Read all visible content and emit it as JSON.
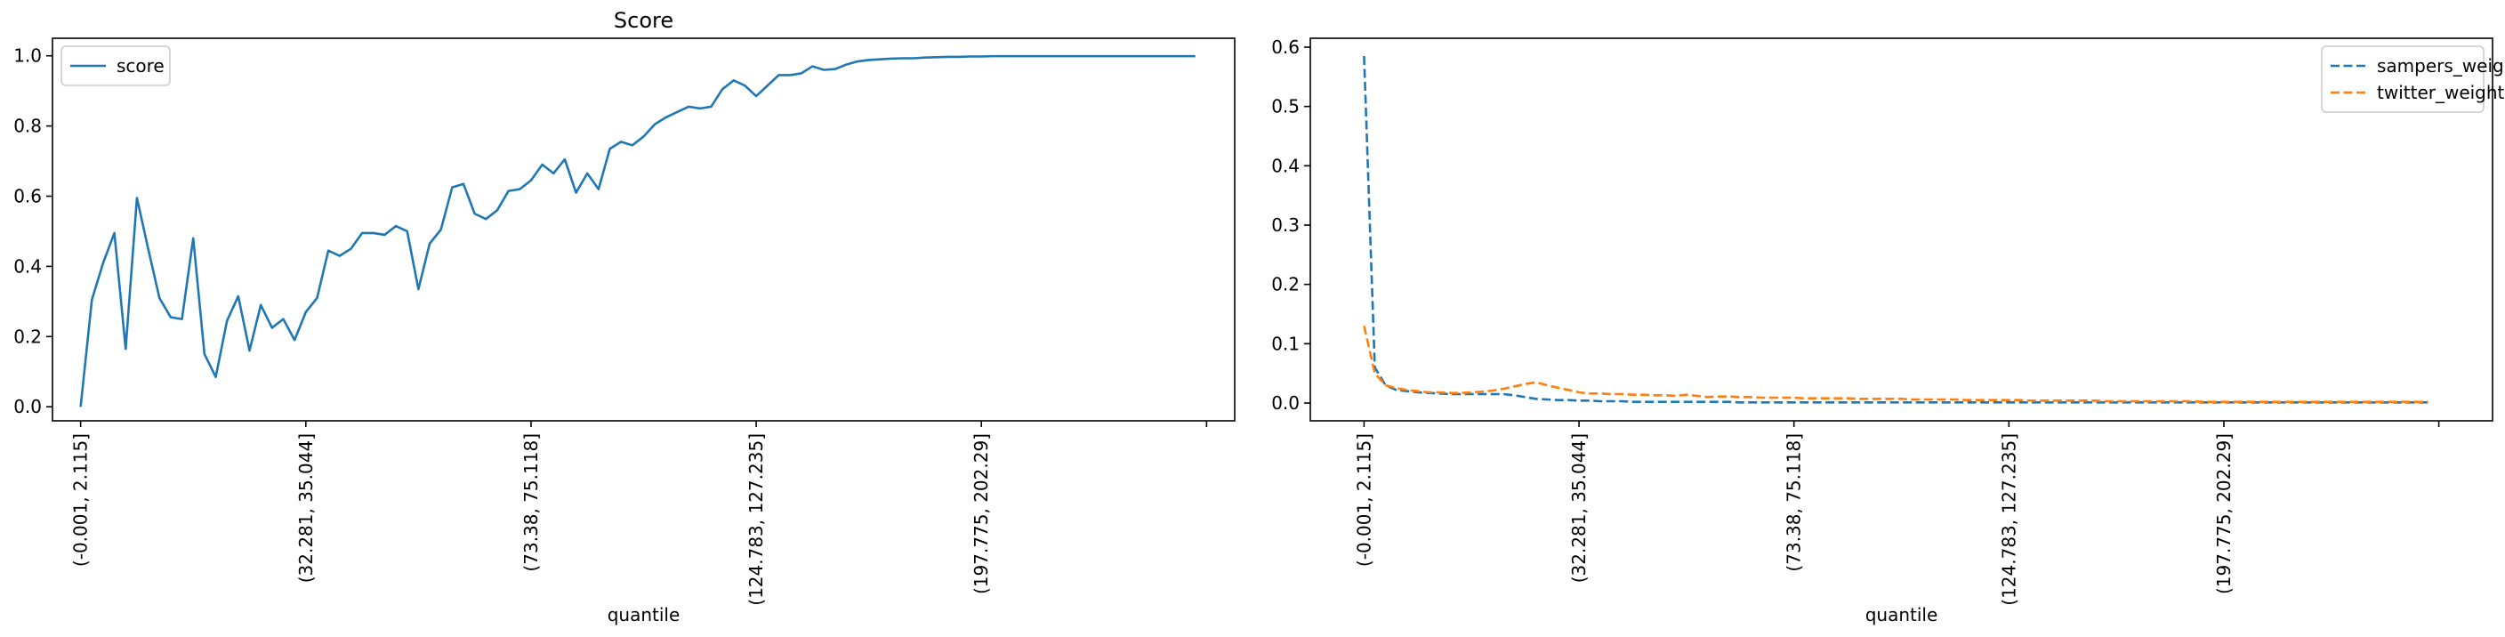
{
  "chart_data": [
    {
      "type": "line",
      "title": "Score",
      "xlabel": "quantile",
      "ylabel": "",
      "ylim": [
        -0.04,
        1.05
      ],
      "xlim": [
        -2.5,
        102.5
      ],
      "yticks": [
        0.0,
        0.2,
        0.4,
        0.6,
        0.8,
        1.0
      ],
      "ytick_labels": [
        "0.0",
        "0.2",
        "0.4",
        "0.6",
        "0.8",
        "1.0"
      ],
      "xticks": [
        0,
        20,
        40,
        60,
        80,
        100
      ],
      "xtick_labels": [
        "(-0.001, 2.115]",
        "(32.281, 35.044]",
        "(73.38, 75.118]",
        "(124.783, 127.235]",
        "(197.775, 202.29]",
        ""
      ],
      "legend_position": "upper left",
      "grid": false,
      "series": [
        {
          "name": "score",
          "color": "#1f77b4",
          "linestyle": "solid",
          "values": [
            0.0,
            0.305,
            0.41,
            0.495,
            0.165,
            0.595,
            0.45,
            0.31,
            0.255,
            0.25,
            0.48,
            0.15,
            0.085,
            0.245,
            0.315,
            0.16,
            0.29,
            0.225,
            0.25,
            0.19,
            0.27,
            0.31,
            0.445,
            0.43,
            0.45,
            0.495,
            0.495,
            0.49,
            0.515,
            0.5,
            0.335,
            0.465,
            0.505,
            0.625,
            0.635,
            0.55,
            0.535,
            0.56,
            0.615,
            0.62,
            0.645,
            0.69,
            0.665,
            0.705,
            0.61,
            0.665,
            0.62,
            0.735,
            0.755,
            0.745,
            0.77,
            0.805,
            0.825,
            0.84,
            0.855,
            0.85,
            0.855,
            0.905,
            0.93,
            0.915,
            0.885,
            0.915,
            0.945,
            0.945,
            0.95,
            0.97,
            0.96,
            0.962,
            0.975,
            0.984,
            0.988,
            0.99,
            0.992,
            0.993,
            0.993,
            0.995,
            0.996,
            0.997,
            0.997,
            0.998,
            0.998,
            0.999,
            0.999,
            0.999,
            0.999,
            0.999,
            0.999,
            0.999,
            0.999,
            0.999,
            0.999,
            0.999,
            0.999,
            0.999,
            0.999,
            0.999,
            0.999,
            0.999,
            0.999,
            0.999
          ]
        }
      ]
    },
    {
      "type": "line",
      "title": "",
      "xlabel": "quantile",
      "ylabel": "",
      "ylim": [
        -0.03,
        0.615
      ],
      "xlim": [
        -5.0,
        105.0
      ],
      "yticks": [
        0.0,
        0.1,
        0.2,
        0.3,
        0.4,
        0.5,
        0.6
      ],
      "ytick_labels": [
        "0.0",
        "0.1",
        "0.2",
        "0.3",
        "0.4",
        "0.5",
        "0.6"
      ],
      "xticks": [
        0,
        20,
        40,
        60,
        80,
        100
      ],
      "xtick_labels": [
        "(-0.001, 2.115]",
        "(32.281, 35.044]",
        "(73.38, 75.118]",
        "(124.783, 127.235]",
        "(197.775, 202.29]",
        ""
      ],
      "legend_position": "upper right",
      "grid": false,
      "series": [
        {
          "name": "sampers_weight",
          "color": "#1f77b4",
          "linestyle": "dashed",
          "values": [
            0.585,
            0.06,
            0.03,
            0.022,
            0.02,
            0.018,
            0.017,
            0.016,
            0.015,
            0.015,
            0.015,
            0.015,
            0.015,
            0.015,
            0.013,
            0.01,
            0.007,
            0.006,
            0.005,
            0.005,
            0.004,
            0.004,
            0.003,
            0.003,
            0.003,
            0.002,
            0.002,
            0.002,
            0.002,
            0.002,
            0.002,
            0.002,
            0.002,
            0.002,
            0.002,
            0.001,
            0.001,
            0.001,
            0.001,
            0.001,
            0.001,
            0.001,
            0.001,
            0.001,
            0.001,
            0.001,
            0.001,
            0.001,
            0.001,
            0.001,
            0.001,
            0.001,
            0.001,
            0.001,
            0.001,
            0.001,
            0.001,
            0.001,
            0.001,
            0.001,
            0.001,
            0.001,
            0.001,
            0.001,
            0.001,
            0.001,
            0.001,
            0.001,
            0.001,
            0.001,
            0.001,
            0.001,
            0.001,
            0.001,
            0.001,
            0.001,
            0.001,
            0.001,
            0.001,
            0.001,
            0.001,
            0.001,
            0.001,
            0.001,
            0.001,
            0.001,
            0.001,
            0.001,
            0.001,
            0.001,
            0.001,
            0.001,
            0.001,
            0.001,
            0.001,
            0.001,
            0.001,
            0.001,
            0.001,
            0.001
          ]
        },
        {
          "name": "twitter_weight",
          "color": "#ff7f0e",
          "linestyle": "dashed",
          "values": [
            0.13,
            0.05,
            0.03,
            0.025,
            0.022,
            0.02,
            0.018,
            0.018,
            0.017,
            0.017,
            0.018,
            0.019,
            0.021,
            0.024,
            0.028,
            0.032,
            0.035,
            0.03,
            0.026,
            0.022,
            0.018,
            0.016,
            0.016,
            0.015,
            0.015,
            0.014,
            0.014,
            0.013,
            0.013,
            0.012,
            0.014,
            0.012,
            0.01,
            0.011,
            0.011,
            0.01,
            0.01,
            0.009,
            0.009,
            0.009,
            0.009,
            0.008,
            0.008,
            0.008,
            0.008,
            0.008,
            0.007,
            0.007,
            0.007,
            0.007,
            0.007,
            0.006,
            0.006,
            0.006,
            0.006,
            0.006,
            0.005,
            0.005,
            0.005,
            0.005,
            0.005,
            0.005,
            0.004,
            0.004,
            0.004,
            0.004,
            0.004,
            0.004,
            0.004,
            0.003,
            0.003,
            0.003,
            0.003,
            0.003,
            0.003,
            0.003,
            0.003,
            0.003,
            0.002,
            0.002,
            0.002,
            0.002,
            0.002,
            0.002,
            0.002,
            0.002,
            0.002,
            0.002,
            0.002,
            0.002,
            0.002,
            0.002,
            0.002,
            0.002,
            0.002,
            0.002,
            0.002,
            0.002,
            0.002,
            0.002
          ]
        }
      ]
    }
  ]
}
